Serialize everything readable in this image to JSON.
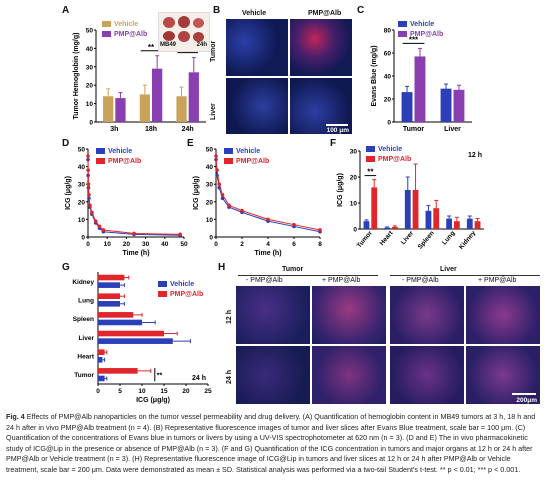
{
  "panels": {
    "A": {
      "label": "A",
      "ylabel": "Tumor Hemoglobin (mg/g)",
      "inset_labels": [
        "MB49",
        "24h"
      ]
    },
    "B": {
      "label": "B",
      "cols": [
        "Vehicle",
        "PMP@Alb"
      ],
      "rows": [
        "Tumor",
        "Liver"
      ],
      "scale": "100 μm"
    },
    "C": {
      "label": "C"
    },
    "D": {
      "label": "D"
    },
    "E": {
      "label": "E"
    },
    "F": {
      "label": "F",
      "note": "12 h"
    },
    "G": {
      "label": "G",
      "note": "24 h"
    },
    "H": {
      "label": "H",
      "groups": [
        "Tumor",
        "Liver"
      ],
      "cols": [
        "- PMP@Alb",
        "+ PMP@Alb",
        "- PMP@Alb",
        "+ PMP@Alb"
      ],
      "rows": [
        "12 h",
        "24 h"
      ],
      "scale": "200μm"
    }
  },
  "colors": {
    "vehicle": "#c9a35a",
    "pmp": "#8a3fb0",
    "blue": "#2a3fb8",
    "red": "#e0262a",
    "grid": "#333333"
  },
  "chart_data": [
    {
      "id": "A",
      "type": "bar",
      "categories": [
        "3h",
        "18h",
        "24h"
      ],
      "series": [
        {
          "name": "Vehicle",
          "values": [
            14,
            15,
            14
          ],
          "err": [
            4,
            5,
            5
          ]
        },
        {
          "name": "PMP@Alb",
          "values": [
            13,
            29,
            27
          ],
          "err": [
            3,
            7,
            8
          ]
        }
      ],
      "ylabel": "Tumor Hemoglobin (mg/g)",
      "ylim": [
        0,
        50
      ],
      "yticks": [
        0,
        10,
        20,
        30,
        40,
        50
      ],
      "sig": [
        "**",
        "**"
      ]
    },
    {
      "id": "C",
      "type": "bar",
      "categories": [
        "Tumor",
        "Liver"
      ],
      "series": [
        {
          "name": "Vehicle",
          "values": [
            26,
            29
          ],
          "err": [
            5,
            4
          ]
        },
        {
          "name": "PMP@Alb",
          "values": [
            57,
            28
          ],
          "err": [
            7,
            4
          ]
        }
      ],
      "ylabel": "Evans Blue (mg/g)",
      "ylim": [
        0,
        80
      ],
      "yticks": [
        0,
        20,
        40,
        60,
        80
      ],
      "sig": [
        "***"
      ]
    },
    {
      "id": "D",
      "type": "line",
      "x": [
        0,
        0.083,
        0.25,
        0.5,
        1,
        2,
        4,
        6,
        8,
        24,
        48
      ],
      "series": [
        {
          "name": "Vehicle",
          "values": [
            44,
            35,
            28,
            22,
            17,
            13,
            8,
            5,
            3,
            1.5,
            1
          ]
        },
        {
          "name": "PMP@Alb",
          "values": [
            46,
            38,
            30,
            24,
            18,
            14,
            9,
            6,
            4,
            2,
            1.5
          ]
        }
      ],
      "xlabel": "Time (h)",
      "ylabel": "ICG (μg/g)",
      "xlim": [
        0,
        50
      ],
      "ylim": [
        0,
        50
      ],
      "xticks": [
        0,
        10,
        20,
        30,
        40,
        50
      ],
      "yticks": [
        0,
        10,
        20,
        30,
        40,
        50
      ]
    },
    {
      "id": "E",
      "type": "line",
      "x": [
        0,
        0.083,
        0.25,
        0.5,
        1,
        2,
        4,
        6,
        8
      ],
      "series": [
        {
          "name": "Vehicle",
          "values": [
            44,
            35,
            28,
            22,
            17,
            14,
            9,
            6,
            3
          ]
        },
        {
          "name": "PMP@Alb",
          "values": [
            46,
            38,
            30,
            24,
            18,
            15,
            10,
            7,
            4
          ]
        }
      ],
      "xlabel": "Time (h)",
      "ylabel": "ICG (μg/g)",
      "xlim": [
        0,
        8
      ],
      "ylim": [
        0,
        50
      ],
      "xticks": [
        0,
        2,
        4,
        6,
        8
      ],
      "yticks": [
        0,
        10,
        20,
        30,
        40,
        50
      ]
    },
    {
      "id": "F",
      "type": "bar",
      "categories": [
        "Tumor",
        "Heart",
        "Liver",
        "Spleen",
        "Lung",
        "Kidney"
      ],
      "series": [
        {
          "name": "Vehicle",
          "values": [
            3,
            0.5,
            15,
            7,
            4,
            4
          ],
          "err": [
            0.5,
            0.3,
            5,
            2,
            1,
            1
          ]
        },
        {
          "name": "PMP@Alb",
          "values": [
            16,
            0.8,
            15,
            8,
            3,
            3
          ],
          "err": [
            3,
            0.4,
            10,
            3,
            1.5,
            1
          ]
        }
      ],
      "ylabel": "ICG (μg/g)",
      "ylim": [
        0,
        30
      ],
      "yticks": [
        0,
        10,
        20,
        30
      ],
      "sig": [
        "**"
      ],
      "annotation": "12 h"
    },
    {
      "id": "G",
      "type": "bar",
      "orientation": "horizontal",
      "categories": [
        "Kidney",
        "Lung",
        "Spleen",
        "Liver",
        "Heart",
        "Tumor"
      ],
      "series": [
        {
          "name": "Vehicle",
          "values": [
            5,
            5,
            10,
            17,
            1,
            1.5
          ],
          "err": [
            1,
            1,
            3,
            4,
            0.5,
            0.5
          ]
        },
        {
          "name": "PMP@Alb",
          "values": [
            6,
            5,
            8,
            15,
            1.5,
            9
          ],
          "err": [
            1,
            1,
            2,
            3,
            0.5,
            3
          ]
        }
      ],
      "xlabel": "ICG (μg/g)",
      "xlim": [
        0,
        25
      ],
      "xticks": [
        0,
        5,
        10,
        15,
        20,
        25
      ],
      "sig": [
        "**"
      ],
      "annotation": "24 h"
    }
  ],
  "caption": {
    "prefix": "Fig. 4",
    "text": "Effects of PMP@Alb nanoparticles on the tumor vessel permeability and drug delivery. (A) Quantification of hemoglobin content in MB49 tumors at 3 h, 18 h and 24 h after in vivo PMP@Alb treatment (n = 4). (B) Representative fluorescence images of tumor and liver slices after Evans Blue treatment, scale bar = 100 μm. (C) Quantification of the concentrations of Evans blue in tumors or livers by using a UV-VIS spectrophotometer at 620 nm (n = 3). (D and E) The in vivo pharmacokinetic study of ICG@Lip in the presence or absence of PMP@Alb (n = 3). (F and G) Quantification of the ICG concentration in tumors and major organs at 12 h or 24 h after PMP@Alb or Vehicle treatment (n = 3). (H) Representative fluorescence image of ICG@Lip in tumors and liver slices at 12 h or 24 h after PMP@Alb or Vehicle treatment, scale bar = 200 μm. Data were demonstrated as mean ± SD. Statistical analysis was performed via a two-tail Student's t-test. ** p < 0.01; *** p < 0.001."
  }
}
